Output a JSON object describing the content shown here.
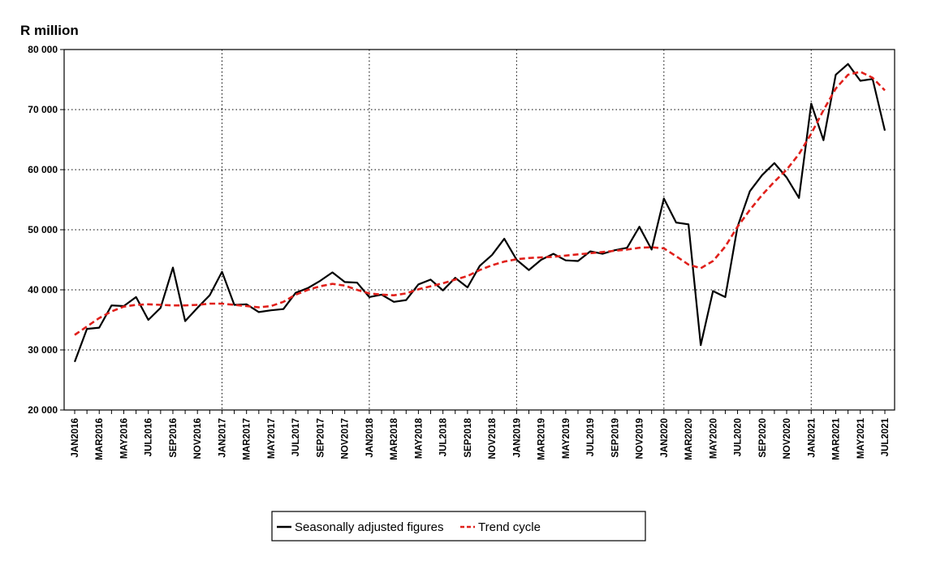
{
  "chart_data": {
    "type": "line",
    "unit_label": "R million",
    "ylim": [
      20000,
      80000
    ],
    "yticks": [
      20000,
      30000,
      40000,
      50000,
      60000,
      70000,
      80000
    ],
    "ytick_labels": [
      "20 000",
      "30 000",
      "40 000",
      "50 000",
      "60 000",
      "70 000",
      "80 000"
    ],
    "x": [
      "JAN2016",
      "FEB2016",
      "MAR2016",
      "APR2016",
      "MAY2016",
      "JUN2016",
      "JUL2016",
      "AUG2016",
      "SEP2016",
      "OCT2016",
      "NOV2016",
      "DEC2016",
      "JAN2017",
      "FEB2017",
      "MAR2017",
      "APR2017",
      "MAY2017",
      "JUN2017",
      "JUL2017",
      "AUG2017",
      "SEP2017",
      "OCT2017",
      "NOV2017",
      "DEC2017",
      "JAN2018",
      "FEB2018",
      "MAR2018",
      "APR2018",
      "MAY2018",
      "JUN2018",
      "JUL2018",
      "AUG2018",
      "SEP2018",
      "OCT2018",
      "NOV2018",
      "DEC2018",
      "JAN2019",
      "FEB2019",
      "MAR2019",
      "APR2019",
      "MAY2019",
      "JUN2019",
      "JUL2019",
      "AUG2019",
      "SEP2019",
      "OCT2019",
      "NOV2019",
      "DEC2019",
      "JAN2020",
      "FEB2020",
      "MAR2020",
      "APR2020",
      "MAY2020",
      "JUN2020",
      "JUL2020",
      "AUG2020",
      "SEP2020",
      "OCT2020",
      "NOV2020",
      "DEC2020",
      "JAN2021",
      "FEB2021",
      "MAR2021",
      "APR2021",
      "MAY2021",
      "JUN2021",
      "JUL2021"
    ],
    "xtick_labels": [
      "JAN2016",
      "MAR2016",
      "MAY2016",
      "JUL2016",
      "SEP2016",
      "NOV2016",
      "JAN2017",
      "MAR2017",
      "MAY2017",
      "JUL2017",
      "SEP2017",
      "NOV2017",
      "JAN2018",
      "MAR2018",
      "MAY2018",
      "JUL2018",
      "SEP2018",
      "NOV2018",
      "JAN2019",
      "MAR2019",
      "MAY2019",
      "JUL2019",
      "SEP2019",
      "NOV2019",
      "JAN2020",
      "MAR2020",
      "MAY2020",
      "JUL2020",
      "SEP2020",
      "NOV2020",
      "JAN2021",
      "MAR2021",
      "MAY2021",
      "JUL2021"
    ],
    "xgrid_years": [
      "JAN2017",
      "JAN2018",
      "JAN2019",
      "JAN2020",
      "JAN2021"
    ],
    "grid": true,
    "legend_position": "bottom",
    "series": [
      {
        "name": "Seasonally adjusted figures",
        "color": "#000000",
        "style": "solid",
        "values": [
          28000,
          33500,
          33700,
          37400,
          37300,
          38800,
          35000,
          37000,
          43700,
          34800,
          37000,
          39100,
          43000,
          37500,
          37600,
          36300,
          36600,
          36800,
          39500,
          40300,
          41500,
          42900,
          41300,
          41200,
          38800,
          39200,
          38000,
          38300,
          40900,
          41700,
          39900,
          42000,
          40400,
          44000,
          45800,
          48500,
          45000,
          43300,
          45000,
          46000,
          44900,
          44800,
          46400,
          46000,
          46600,
          47000,
          50500,
          46700,
          55200,
          51200,
          50900,
          30800,
          39800,
          38800,
          50500,
          56400,
          59100,
          61100,
          58700,
          55300,
          71000,
          64900,
          75800,
          77600,
          74800,
          75100,
          66500
        ]
      },
      {
        "name": "Trend cycle",
        "color": "#e0201b",
        "style": "dashed",
        "values": [
          32500,
          33900,
          35300,
          36400,
          37200,
          37500,
          37600,
          37500,
          37400,
          37400,
          37500,
          37700,
          37700,
          37500,
          37300,
          37100,
          37300,
          38000,
          39200,
          40000,
          40600,
          41000,
          40700,
          40000,
          39400,
          39200,
          39100,
          39400,
          40100,
          40600,
          41100,
          41700,
          42300,
          43300,
          44100,
          44700,
          45100,
          45300,
          45400,
          45500,
          45700,
          45900,
          46100,
          46300,
          46500,
          46700,
          47000,
          47100,
          46900,
          45600,
          44200,
          43600,
          44800,
          47200,
          50500,
          53300,
          55800,
          58000,
          60000,
          62600,
          66000,
          69900,
          73500,
          75800,
          76300,
          75300,
          73200
        ]
      }
    ]
  }
}
